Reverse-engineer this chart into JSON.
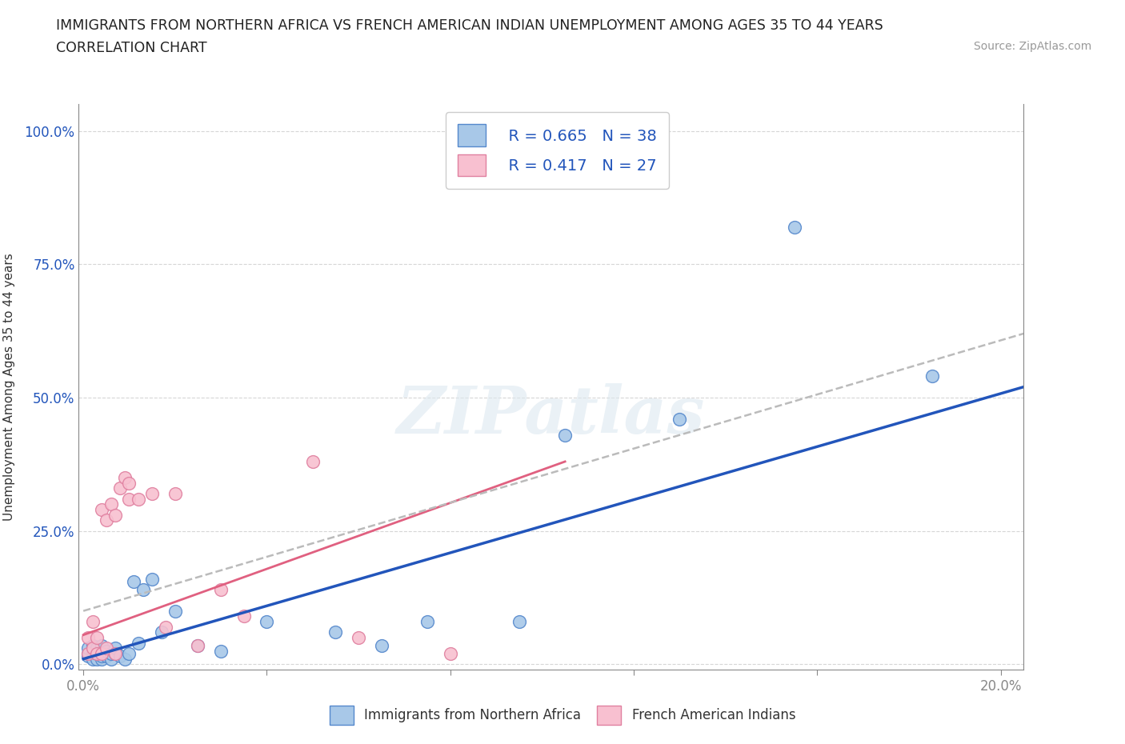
{
  "title_line1": "IMMIGRANTS FROM NORTHERN AFRICA VS FRENCH AMERICAN INDIAN UNEMPLOYMENT AMONG AGES 35 TO 44 YEARS",
  "title_line2": "CORRELATION CHART",
  "source": "Source: ZipAtlas.com",
  "ylabel": "Unemployment Among Ages 35 to 44 years",
  "xlim": [
    -0.001,
    0.205
  ],
  "ylim": [
    -0.01,
    1.05
  ],
  "xticks": [
    0.0,
    0.04,
    0.08,
    0.12,
    0.16,
    0.2
  ],
  "yticks": [
    0.0,
    0.25,
    0.5,
    0.75,
    1.0
  ],
  "watermark_text": "ZIPatlas",
  "legend_r1": "R = 0.665",
  "legend_n1": "N = 38",
  "legend_r2": "R = 0.417",
  "legend_n2": "N = 27",
  "blue_face": "#a8c8e8",
  "blue_edge": "#5588cc",
  "blue_line": "#2255bb",
  "pink_face": "#f8c0d0",
  "pink_edge": "#e080a0",
  "pink_line": "#e06080",
  "gray_dash_color": "#bbbbbb",
  "grid_color": "#cccccc",
  "bg_color": "#ffffff",
  "title_color": "#222222",
  "ytick_color": "#2255bb",
  "xtick_color": "#222222",
  "blue_scatter_x": [
    0.001,
    0.001,
    0.001,
    0.002,
    0.002,
    0.002,
    0.003,
    0.003,
    0.003,
    0.004,
    0.004,
    0.004,
    0.005,
    0.005,
    0.006,
    0.006,
    0.007,
    0.007,
    0.008,
    0.009,
    0.01,
    0.011,
    0.012,
    0.013,
    0.015,
    0.017,
    0.02,
    0.025,
    0.03,
    0.04,
    0.055,
    0.065,
    0.075,
    0.095,
    0.105,
    0.13,
    0.155,
    0.185
  ],
  "blue_scatter_y": [
    0.02,
    0.015,
    0.03,
    0.01,
    0.025,
    0.035,
    0.01,
    0.02,
    0.03,
    0.01,
    0.015,
    0.035,
    0.015,
    0.025,
    0.01,
    0.02,
    0.02,
    0.03,
    0.015,
    0.01,
    0.02,
    0.155,
    0.04,
    0.14,
    0.16,
    0.06,
    0.1,
    0.035,
    0.025,
    0.08,
    0.06,
    0.035,
    0.08,
    0.08,
    0.43,
    0.46,
    0.82,
    0.54
  ],
  "pink_scatter_x": [
    0.001,
    0.001,
    0.002,
    0.002,
    0.003,
    0.003,
    0.004,
    0.004,
    0.005,
    0.005,
    0.006,
    0.007,
    0.007,
    0.008,
    0.009,
    0.01,
    0.01,
    0.012,
    0.015,
    0.018,
    0.02,
    0.025,
    0.03,
    0.035,
    0.05,
    0.06,
    0.08
  ],
  "pink_scatter_y": [
    0.02,
    0.05,
    0.03,
    0.08,
    0.02,
    0.05,
    0.29,
    0.02,
    0.03,
    0.27,
    0.3,
    0.02,
    0.28,
    0.33,
    0.35,
    0.31,
    0.34,
    0.31,
    0.32,
    0.07,
    0.32,
    0.035,
    0.14,
    0.09,
    0.38,
    0.05,
    0.02
  ],
  "blue_trendline_x0": 0.0,
  "blue_trendline_x1": 0.205,
  "blue_trendline_y0": 0.01,
  "blue_trendline_y1": 0.52,
  "pink_trendline_x0": 0.0,
  "pink_trendline_x1": 0.105,
  "pink_trendline_y0": 0.055,
  "pink_trendline_y1": 0.38,
  "gray_trendline_x0": 0.0,
  "gray_trendline_x1": 0.205,
  "gray_trendline_y0": 0.1,
  "gray_trendline_y1": 0.62
}
